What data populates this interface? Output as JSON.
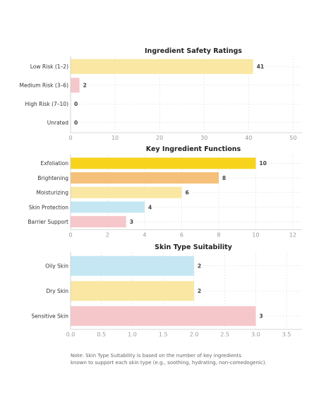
{
  "chart_data": [
    {
      "type": "bar",
      "orientation": "horizontal",
      "title": "Ingredient Safety Ratings",
      "categories": [
        "Low Risk (1–2)",
        "Medium Risk (3–6)",
        "High Risk (7–10)",
        "Unrated"
      ],
      "values": [
        41,
        2,
        0,
        0
      ],
      "colors": [
        "#f9e7a3",
        "#f5c7cb",
        "#f5c7cb",
        "#f5c7cb"
      ],
      "xlim": [
        0,
        52
      ],
      "xticks": [
        0,
        10,
        20,
        30,
        40,
        50
      ],
      "xtick_labels": [
        "0",
        "10",
        "20",
        "30",
        "40",
        "50"
      ],
      "grid": true
    },
    {
      "type": "bar",
      "orientation": "horizontal",
      "title": "Key Ingredient Functions",
      "categories": [
        "Exfoliation",
        "Brightening",
        "Moisturizing",
        "Skin Protection",
        "Barrier Support"
      ],
      "values": [
        10,
        8,
        6,
        4,
        3
      ],
      "colors": [
        "#f7d31c",
        "#f5c07a",
        "#f9e7a3",
        "#c4e7f3",
        "#f5c7cb"
      ],
      "xlim": [
        0,
        12.5
      ],
      "xticks": [
        0,
        2,
        4,
        6,
        8,
        10,
        12
      ],
      "xtick_labels": [
        "0",
        "2",
        "4",
        "6",
        "8",
        "10",
        "12"
      ],
      "grid": true
    },
    {
      "type": "bar",
      "orientation": "horizontal",
      "title": "Skin Type Suitability",
      "categories": [
        "Oily Skin",
        "Dry Skin",
        "Sensitive Skin"
      ],
      "values": [
        2,
        2,
        3
      ],
      "colors": [
        "#c4e7f3",
        "#f9e7a3",
        "#f5c7cb"
      ],
      "xlim": [
        0,
        3.75
      ],
      "xticks": [
        0,
        0.5,
        1.0,
        1.5,
        2.0,
        2.5,
        3.0,
        3.5
      ],
      "xtick_labels": [
        "0.0",
        "0.5",
        "1.0",
        "1.5",
        "2.0",
        "2.5",
        "3.0",
        "3.5"
      ],
      "grid": true
    }
  ],
  "note": {
    "line1": "Note: Skin Type Suitability is based on the number of key ingredients",
    "line2": "known to support each skin type (e.g., soothing, hydrating, non-comedogenic)."
  },
  "colors": {
    "axis": "#cccccc",
    "grid": "#dddddd",
    "tick_label": "#999999",
    "category_label": "#333333",
    "title": "#222222",
    "value_label": "#444444"
  }
}
